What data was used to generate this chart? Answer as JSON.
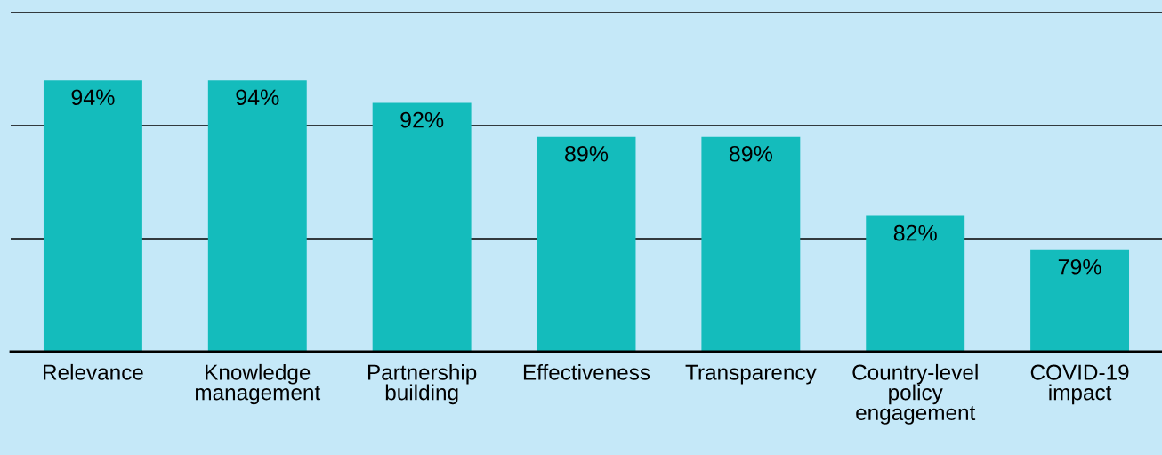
{
  "chart_data": {
    "type": "bar",
    "categories": [
      "Relevance",
      "Knowledge\nmanagement",
      "Partnership\nbuilding",
      "Effectiveness",
      "Transparency",
      "Country-level\npolicy\nengagement",
      "COVID-19\nimpact"
    ],
    "values": [
      94,
      94,
      92,
      89,
      89,
      82,
      79
    ],
    "value_labels": [
      "94%",
      "94%",
      "92%",
      "89%",
      "89%",
      "82%",
      "79%"
    ],
    "color": "#14bcbc",
    "ylim": [
      70,
      100
    ],
    "ref_lines": [
      {
        "axis": "y",
        "value": 80,
        "color": "#000000"
      },
      {
        "axis": "y",
        "value": 90,
        "color": "#000000"
      },
      {
        "axis": "y",
        "value": 100,
        "color": "#000000"
      }
    ],
    "tick_labels": "x"
  }
}
